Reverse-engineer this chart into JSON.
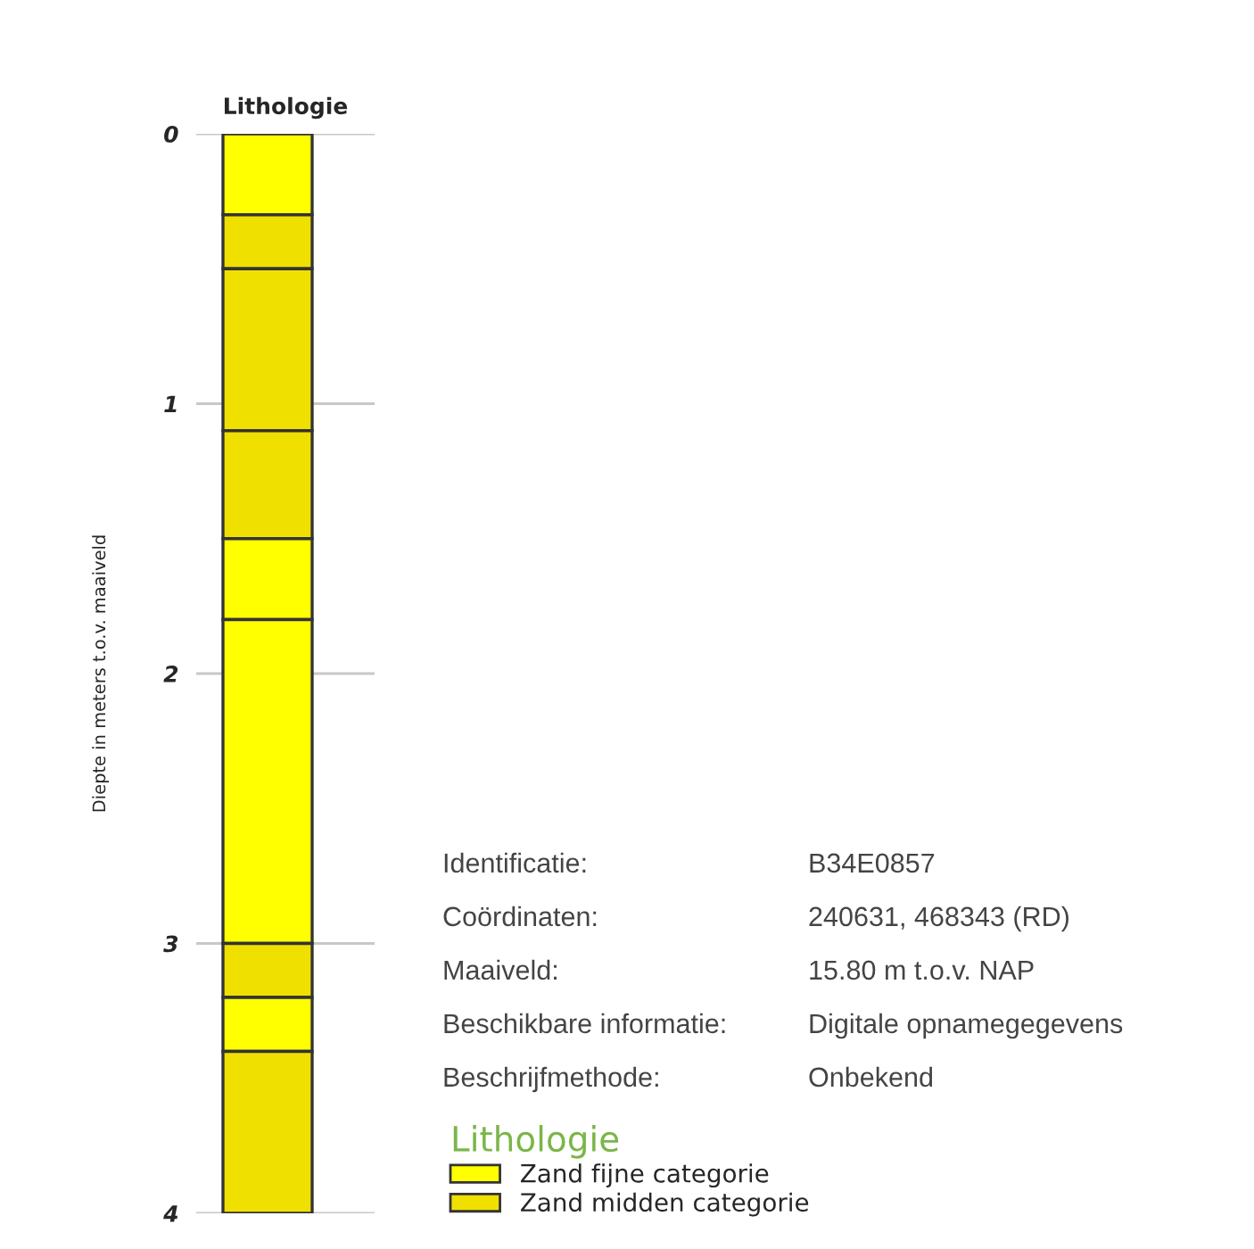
{
  "chart_data": {
    "type": "bar",
    "stacked": true,
    "title": "Lithologie",
    "ylabel": "Diepte in meters t.o.v. maaiveld",
    "categories": [
      null
    ],
    "series": [
      {
        "name": "Zand fijne categorie",
        "color": "#ffff00",
        "values": [
          0.3
        ]
      },
      {
        "name": "Zand midden categorie",
        "color": "#f0e000",
        "values": [
          0.2
        ]
      },
      {
        "color": "#f0e000",
        "values": [
          0.6
        ]
      },
      {
        "color": "#f0e000",
        "values": [
          0.4
        ]
      },
      {
        "color": "#ffff00",
        "values": [
          0.3
        ]
      },
      {
        "color": "#ffff00",
        "values": [
          1.2
        ]
      },
      {
        "color": "#f0e000",
        "values": [
          0.2
        ]
      },
      {
        "color": "#ffff00",
        "values": [
          0.2
        ]
      },
      {
        "color": "#f0e000",
        "values": [
          0.6
        ]
      }
    ],
    "ylim": [
      4,
      0
    ],
    "yticks": [
      0,
      1,
      2,
      3,
      4
    ],
    "grid": "y",
    "legend": "bottom right",
    "legend_title": "Lithologie",
    "annotations": [
      "Identificatie:",
      "B34E0857",
      "Coördinaten:",
      "240631, 468343 (RD)",
      "Maaiveld:",
      "15.80 m t.o.v. NAP",
      "Beschikbare informatie:",
      "Digitale opnamegegevens",
      "Beschrijfmethode:",
      "Onbekend"
    ]
  }
}
